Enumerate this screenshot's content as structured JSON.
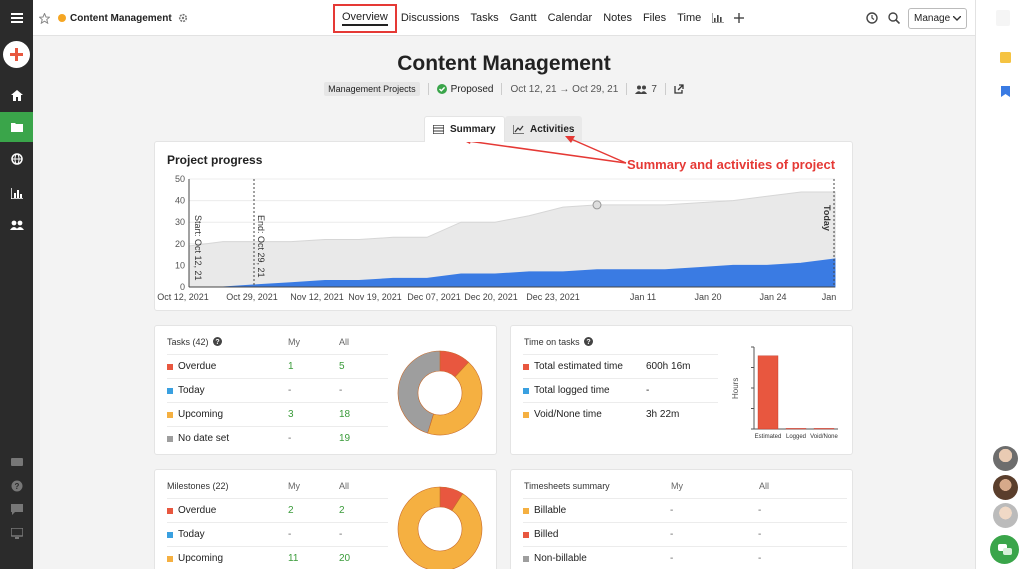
{
  "header": {
    "title": "Content Management",
    "nav_tabs": [
      "Overview",
      "Discussions",
      "Tasks",
      "Gantt",
      "Calendar",
      "Notes",
      "Files",
      "Time"
    ],
    "manage_label": "Manage"
  },
  "project": {
    "title": "Content Management",
    "category": "Management Projects",
    "status": "Proposed",
    "dates": "Oct 12, 21 → Oct 29, 21",
    "members": "7"
  },
  "view_tabs": {
    "summary": "Summary",
    "activities": "Activities"
  },
  "annotation": "Summary and activities of project",
  "colors": {
    "accent": "#3aa54a",
    "annotation": "#e53935",
    "area_blue": "#3a7be3",
    "area_gray": "#e9e9e9"
  },
  "chart_data": {
    "type": "area",
    "title": "Project progress",
    "ylim": [
      0,
      50
    ],
    "yticks": [
      0,
      10,
      20,
      30,
      40,
      50
    ],
    "x_tick_labels": [
      "Oct 12, 2021",
      "Oct 29, 2021",
      "Nov 12, 2021",
      "Nov 19, 2021",
      "Dec 07, 2021",
      "Dec 20, 2021",
      "Dec 23, 2021",
      "Jan 11",
      "Jan 20",
      "Jan 24",
      "Jan"
    ],
    "annotations": [
      "Start: Oct 12, 21",
      "End: Oct 29, 21",
      "Today"
    ],
    "series": [
      {
        "name": "total",
        "color": "#e9e9e9",
        "values": [
          19,
          21,
          21,
          21,
          22,
          22,
          23,
          23,
          30,
          30,
          33,
          37,
          38,
          38,
          38,
          39,
          40,
          42,
          44,
          44
        ]
      },
      {
        "name": "done",
        "color": "#3a7be3",
        "values": [
          0,
          0,
          1,
          2,
          3,
          3,
          4,
          4,
          6,
          6,
          7,
          7,
          8,
          8,
          8,
          9,
          10,
          10,
          11,
          13
        ]
      }
    ]
  },
  "tasks": {
    "title": "Tasks (42)",
    "col_my": "My",
    "col_all": "All",
    "rows": [
      {
        "label": "Overdue",
        "my": "1",
        "all": "5",
        "color": "#e8573f"
      },
      {
        "label": "Today",
        "my": "-",
        "all": "-",
        "color": "#3aa0e0"
      },
      {
        "label": "Upcoming",
        "my": "3",
        "all": "18",
        "color": "#f5b041"
      },
      {
        "label": "No date set",
        "my": "-",
        "all": "19",
        "color": "#9e9e9e"
      }
    ],
    "donut": [
      {
        "value": 5,
        "color": "#e8573f"
      },
      {
        "value": 18,
        "color": "#f5b041"
      },
      {
        "value": 19,
        "color": "#9e9e9e"
      }
    ]
  },
  "time": {
    "title": "Time on tasks",
    "rows": [
      {
        "label": "Total estimated time",
        "value": "600h 16m",
        "color": "#e8573f"
      },
      {
        "label": "Total logged time",
        "value": "-",
        "color": "#3aa0e0"
      },
      {
        "label": "Void/None time",
        "value": "3h 22m",
        "color": "#f5b041"
      }
    ],
    "bar_chart": {
      "ylabel": "Hours",
      "categories": [
        "Estimated",
        "Logged",
        "Void/None"
      ],
      "values": [
        600.27,
        0,
        3.37
      ]
    }
  },
  "milestones": {
    "title": "Milestones (22)",
    "col_my": "My",
    "col_all": "All",
    "rows": [
      {
        "label": "Overdue",
        "my": "2",
        "all": "2",
        "color": "#e8573f"
      },
      {
        "label": "Today",
        "my": "-",
        "all": "-",
        "color": "#3aa0e0"
      },
      {
        "label": "Upcoming",
        "my": "11",
        "all": "20",
        "color": "#f5b041"
      }
    ],
    "donut": [
      {
        "value": 2,
        "color": "#e8573f"
      },
      {
        "value": 20,
        "color": "#f5b041"
      }
    ]
  },
  "timesheets": {
    "title": "Timesheets summary",
    "col_my": "My",
    "col_all": "All",
    "rows": [
      {
        "label": "Billable",
        "my": "-",
        "all": "-",
        "color": "#f5b041"
      },
      {
        "label": "Billed",
        "my": "-",
        "all": "-",
        "color": "#e8573f"
      },
      {
        "label": "Non-billable",
        "my": "-",
        "all": "-",
        "color": "#9e9e9e"
      }
    ]
  }
}
